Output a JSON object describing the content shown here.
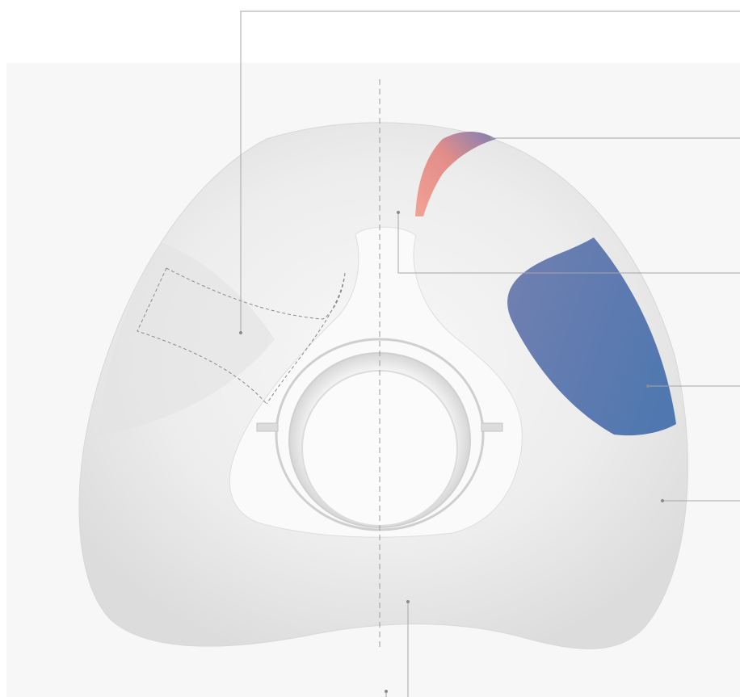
{
  "diagram": {
    "subject": "mask-cushion",
    "colors": {
      "background_panel": "#f7f7f7",
      "cushion_base": "#e9e9e9",
      "leader_line": "#9a9a9a",
      "centerline": "#9a9a9a",
      "highlight_top_start": "#f2a293",
      "highlight_top_end": "#7c7fb6",
      "highlight_side_start": "#6f7fb0",
      "highlight_side_end": "#4f77b0"
    },
    "callouts": [
      {
        "id": "upper-left-region"
      },
      {
        "id": "top-ridge-region"
      },
      {
        "id": "nasal-bridge-region"
      },
      {
        "id": "cheek-region"
      },
      {
        "id": "lower-side-region"
      },
      {
        "id": "chin-region"
      }
    ]
  }
}
